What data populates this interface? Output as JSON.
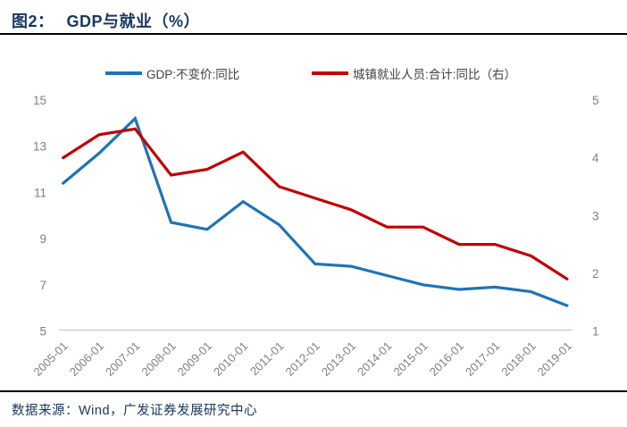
{
  "header": {
    "figure_label": "图2：",
    "title": "GDP与就业（%）"
  },
  "legend": {
    "items": [
      {
        "id": "gdp",
        "label": "GDP:不变价:同比",
        "color": "#1F74B4"
      },
      {
        "id": "employment",
        "label": "城镇就业人员:合计:同比（右）",
        "color": "#C00000"
      }
    ]
  },
  "chart_data": {
    "type": "line",
    "title": "GDP与就业（%）",
    "x": [
      "2005-01",
      "2006-01",
      "2007-01",
      "2008-01",
      "2009-01",
      "2010-01",
      "2011-01",
      "2012-01",
      "2013-01",
      "2014-01",
      "2015-01",
      "2016-01",
      "2017-01",
      "2018-01",
      "2019-01"
    ],
    "series": [
      {
        "id": "gdp-line",
        "name": "GDP:不变价:同比",
        "axis": "left",
        "color": "#1F74B4",
        "values": [
          11.4,
          12.7,
          14.2,
          9.7,
          9.4,
          10.6,
          9.6,
          7.9,
          7.8,
          7.4,
          7.0,
          6.8,
          6.9,
          6.7,
          6.1
        ]
      },
      {
        "id": "employment-line",
        "name": "城镇就业人员:合计:同比（右）",
        "axis": "right",
        "color": "#C00000",
        "values": [
          4.0,
          4.4,
          4.5,
          3.7,
          3.8,
          4.1,
          3.5,
          3.3,
          3.1,
          2.8,
          2.8,
          2.5,
          2.5,
          2.3,
          1.9
        ]
      }
    ],
    "left_axis": {
      "ticks": [
        5,
        7,
        9,
        11,
        13,
        15
      ],
      "range": [
        5,
        15
      ]
    },
    "right_axis": {
      "ticks": [
        1,
        2,
        3,
        4,
        5
      ],
      "range": [
        1,
        5
      ]
    },
    "grid": false,
    "legend_position": "top"
  },
  "footer": {
    "source": "数据来源：Wind，广发证券发展研究中心"
  },
  "colors": {
    "axis_text": "#7F7F7F",
    "axis_line": "#C9C9C9"
  }
}
